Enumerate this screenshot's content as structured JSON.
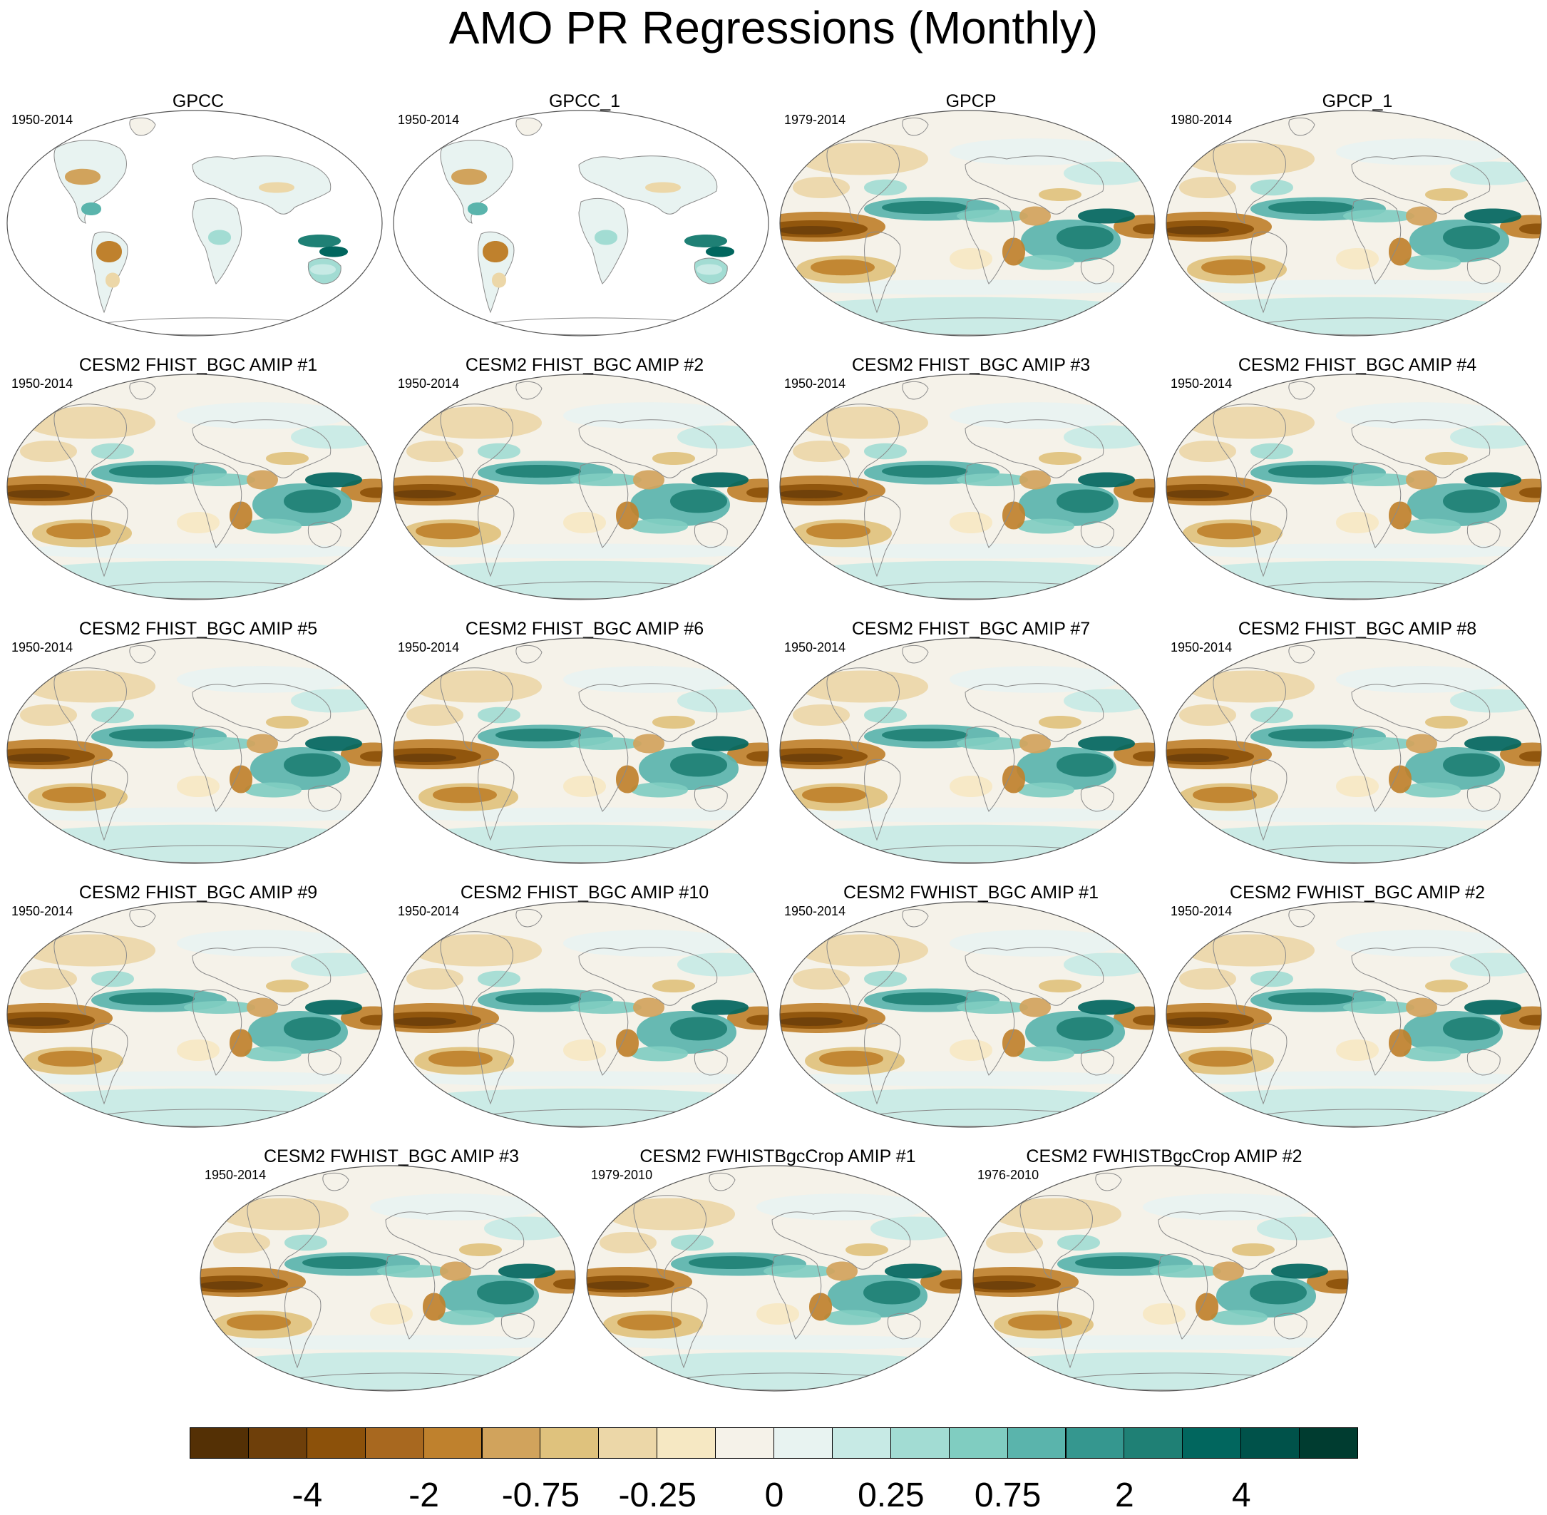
{
  "title": "AMO PR Regressions (Monthly)",
  "panels": [
    {
      "title": "GPCC",
      "period": "1950-2014",
      "coverage": "land"
    },
    {
      "title": "GPCC_1",
      "period": "1950-2014",
      "coverage": "land"
    },
    {
      "title": "GPCP",
      "period": "1979-2014",
      "coverage": "global"
    },
    {
      "title": "GPCP_1",
      "period": "1980-2014",
      "coverage": "global"
    },
    {
      "title": "CESM2 FHIST_BGC AMIP #1",
      "period": "1950-2014",
      "coverage": "global"
    },
    {
      "title": "CESM2 FHIST_BGC AMIP #2",
      "period": "1950-2014",
      "coverage": "global"
    },
    {
      "title": "CESM2 FHIST_BGC AMIP #3",
      "period": "1950-2014",
      "coverage": "global"
    },
    {
      "title": "CESM2 FHIST_BGC AMIP #4",
      "period": "1950-2014",
      "coverage": "global"
    },
    {
      "title": "CESM2 FHIST_BGC AMIP #5",
      "period": "1950-2014",
      "coverage": "global"
    },
    {
      "title": "CESM2 FHIST_BGC AMIP #6",
      "period": "1950-2014",
      "coverage": "global"
    },
    {
      "title": "CESM2 FHIST_BGC AMIP #7",
      "period": "1950-2014",
      "coverage": "global"
    },
    {
      "title": "CESM2 FHIST_BGC AMIP #8",
      "period": "1950-2014",
      "coverage": "global"
    },
    {
      "title": "CESM2 FHIST_BGC AMIP #9",
      "period": "1950-2014",
      "coverage": "global"
    },
    {
      "title": "CESM2 FHIST_BGC AMIP #10",
      "period": "1950-2014",
      "coverage": "global"
    },
    {
      "title": "CESM2 FWHIST_BGC AMIP #1",
      "period": "1950-2014",
      "coverage": "global"
    },
    {
      "title": "CESM2 FWHIST_BGC AMIP #2",
      "period": "1950-2014",
      "coverage": "global"
    },
    {
      "title": "CESM2 FWHIST_BGC AMIP #3",
      "period": "1950-2014",
      "coverage": "global"
    },
    {
      "title": "CESM2 FWHISTBgcCrop AMIP #1",
      "period": "1979-2010",
      "coverage": "global"
    },
    {
      "title": "CESM2 FWHISTBgcCrop AMIP #2",
      "period": "1976-2010",
      "coverage": "global"
    }
  ],
  "colorbar": {
    "colors": [
      "#543005",
      "#6e3f0a",
      "#8c510a",
      "#a8681f",
      "#bf812d",
      "#d1a35c",
      "#dfc27d",
      "#ecd7a8",
      "#f6e8c3",
      "#f5f2e9",
      "#e8f3f1",
      "#c7eae5",
      "#a2dcd3",
      "#80cdc1",
      "#5ab4ac",
      "#35978f",
      "#1f8075",
      "#01665e",
      "#00524a",
      "#003c30"
    ],
    "labels": [
      "-4",
      "-2",
      "-0.75",
      "-0.25",
      "0",
      "0.25",
      "0.75",
      "2",
      "4"
    ],
    "label_boundaries": [
      2,
      4,
      6,
      8,
      10,
      12,
      14,
      16,
      18
    ]
  }
}
